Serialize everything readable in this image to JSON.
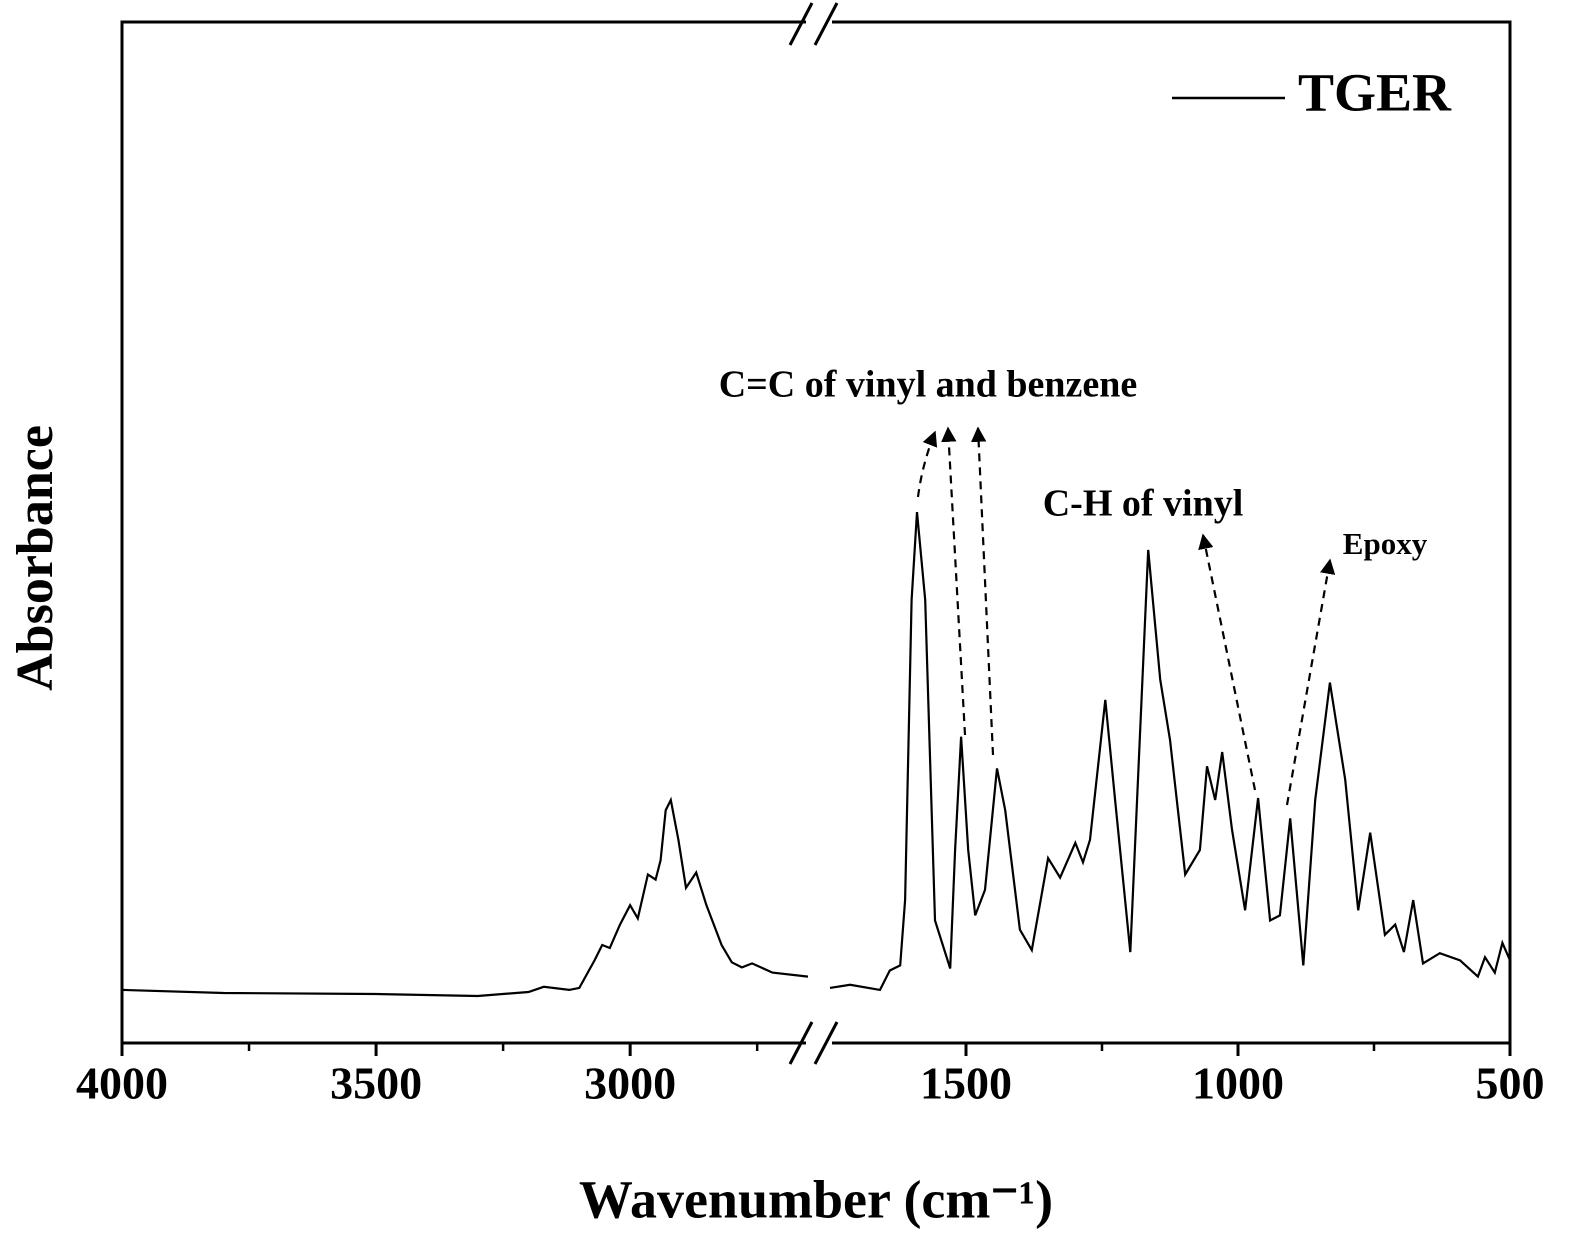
{
  "chart_data": {
    "type": "line",
    "xlabel": "Wavenumber (cm⁻¹)",
    "ylabel": "Absorbance",
    "xlim": [
      4000,
      500
    ],
    "xbreak": [
      2650,
      1750
    ],
    "xticks": [
      4000,
      3500,
      3000,
      1500,
      1000,
      500
    ],
    "xminor": [
      3750,
      3250,
      2750,
      1250,
      750
    ],
    "ylim": [
      0,
      1
    ],
    "legend": "upper right",
    "annotations": [
      "C=C of vinyl and benzene",
      "C-H of vinyl",
      "Epoxy"
    ],
    "series": [
      {
        "name": "TGER",
        "color": "#000000",
        "x": [
          4000,
          3800,
          3500,
          3300,
          3200,
          3170,
          3120,
          3100,
          3070,
          3055,
          3040,
          3020,
          3000,
          2985,
          2965,
          2950,
          2940,
          2930,
          2920,
          2905,
          2890,
          2870,
          2850,
          2820,
          2800,
          2780,
          2760,
          2720,
          2650,
          1750,
          1713,
          1658,
          1640,
          1621,
          1612,
          1600,
          1590,
          1575,
          1557,
          1529,
          1520,
          1509,
          1496,
          1483,
          1465,
          1443,
          1428,
          1401,
          1379,
          1349,
          1327,
          1299,
          1285,
          1272,
          1244,
          1226,
          1198,
          1165,
          1143,
          1125,
          1097,
          1070,
          1057,
          1042,
          1029,
          1011,
          987,
          963,
          941,
          923,
          904,
          880,
          858,
          831,
          803,
          779,
          757,
          730,
          711,
          695,
          678,
          660,
          629,
          592,
          559,
          546,
          528,
          514,
          500
        ],
        "values": [
          0.052,
          0.049,
          0.048,
          0.046,
          0.05,
          0.055,
          0.052,
          0.054,
          0.081,
          0.096,
          0.093,
          0.116,
          0.135,
          0.122,
          0.165,
          0.16,
          0.179,
          0.228,
          0.238,
          0.199,
          0.152,
          0.167,
          0.135,
          0.096,
          0.079,
          0.074,
          0.078,
          0.069,
          0.065,
          0.054,
          0.057,
          0.052,
          0.071,
          0.076,
          0.14,
          0.434,
          0.52,
          0.434,
          0.12,
          0.073,
          0.189,
          0.3,
          0.189,
          0.125,
          0.15,
          0.269,
          0.228,
          0.111,
          0.091,
          0.181,
          0.162,
          0.196,
          0.177,
          0.199,
          0.336,
          0.238,
          0.089,
          0.483,
          0.356,
          0.297,
          0.165,
          0.189,
          0.271,
          0.238,
          0.285,
          0.209,
          0.13,
          0.24,
          0.12,
          0.125,
          0.22,
          0.076,
          0.238,
          0.353,
          0.258,
          0.13,
          0.206,
          0.106,
          0.116,
          0.089,
          0.14,
          0.078,
          0.088,
          0.081,
          0.065,
          0.084,
          0.069,
          0.098,
          0.081
        ]
      }
    ]
  }
}
